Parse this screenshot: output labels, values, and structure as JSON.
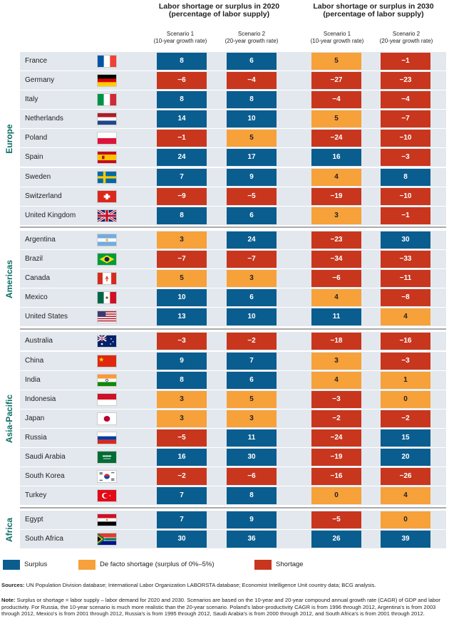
{
  "chart_data": {
    "type": "table",
    "headers": {
      "group_2020": "Labor shortage or surplus in 2020",
      "group_2020_sub": "(percentage of labor supply)",
      "group_2030": "Labor shortage or surplus in 2030",
      "group_2030_sub": "(percentage of labor supply)",
      "s1": "Scenario 1",
      "s1_sub": "(10-year growth rate)",
      "s2": "Scenario 2",
      "s2_sub": "(20-year growth rate)"
    },
    "regions": [
      {
        "name": "Europe",
        "countries": [
          {
            "name": "France",
            "flag": "fr",
            "v": [
              8,
              6,
              5,
              -1
            ]
          },
          {
            "name": "Germany",
            "flag": "de",
            "v": [
              -6,
              -4,
              -27,
              -23
            ]
          },
          {
            "name": "Italy",
            "flag": "it",
            "v": [
              8,
              8,
              -4,
              -4
            ]
          },
          {
            "name": "Netherlands",
            "flag": "nl",
            "v": [
              14,
              10,
              5,
              -7
            ]
          },
          {
            "name": "Poland",
            "flag": "pl",
            "v": [
              -1,
              5,
              -24,
              -10
            ]
          },
          {
            "name": "Spain",
            "flag": "es",
            "v": [
              24,
              17,
              16,
              -3
            ]
          },
          {
            "name": "Sweden",
            "flag": "se",
            "v": [
              7,
              9,
              4,
              8
            ]
          },
          {
            "name": "Switzerland",
            "flag": "ch",
            "v": [
              -9,
              -5,
              -19,
              -10
            ]
          },
          {
            "name": "United Kingdom",
            "flag": "gb",
            "v": [
              8,
              6,
              3,
              -1
            ]
          }
        ]
      },
      {
        "name": "Americas",
        "countries": [
          {
            "name": "Argentina",
            "flag": "ar",
            "v": [
              3,
              24,
              -23,
              30
            ]
          },
          {
            "name": "Brazil",
            "flag": "br",
            "v": [
              -7,
              -7,
              -34,
              -33
            ]
          },
          {
            "name": "Canada",
            "flag": "ca",
            "v": [
              5,
              3,
              -6,
              -11
            ]
          },
          {
            "name": "Mexico",
            "flag": "mx",
            "v": [
              10,
              6,
              4,
              -8
            ]
          },
          {
            "name": "United States",
            "flag": "us",
            "v": [
              13,
              10,
              11,
              4
            ]
          }
        ]
      },
      {
        "name": "Asia-Pacific",
        "countries": [
          {
            "name": "Australia",
            "flag": "au",
            "v": [
              -3,
              -2,
              -18,
              -16
            ]
          },
          {
            "name": "China",
            "flag": "cn",
            "v": [
              9,
              7,
              3,
              -3
            ]
          },
          {
            "name": "India",
            "flag": "in",
            "v": [
              8,
              6,
              4,
              1
            ]
          },
          {
            "name": "Indonesia",
            "flag": "id",
            "v": [
              3,
              5,
              -3,
              0
            ]
          },
          {
            "name": "Japan",
            "flag": "jp",
            "v": [
              3,
              3,
              -2,
              -2
            ]
          },
          {
            "name": "Russia",
            "flag": "ru",
            "v": [
              -5,
              11,
              -24,
              15
            ]
          },
          {
            "name": "Saudi Arabia",
            "flag": "sa",
            "v": [
              16,
              30,
              -19,
              20
            ]
          },
          {
            "name": "South Korea",
            "flag": "kr",
            "v": [
              -2,
              -6,
              -16,
              -26
            ]
          },
          {
            "name": "Turkey",
            "flag": "tr",
            "v": [
              7,
              8,
              0,
              4
            ]
          }
        ]
      },
      {
        "name": "Africa",
        "countries": [
          {
            "name": "Egypt",
            "flag": "eg",
            "v": [
              7,
              9,
              -5,
              0
            ]
          },
          {
            "name": "South Africa",
            "flag": "za",
            "v": [
              30,
              36,
              26,
              39
            ]
          }
        ]
      }
    ],
    "legend": [
      {
        "label": "Surplus",
        "color": "#0a5d8f"
      },
      {
        "label": "De facto shortage (surplus of 0%–5%)",
        "color": "#f6a13a"
      },
      {
        "label": "Shortage",
        "color": "#c8361e"
      }
    ]
  },
  "colors": {
    "surplus": "#0a5d8f",
    "defacto": "#f6a13a",
    "shortage": "#c8361e",
    "region": "#0d6e63",
    "rowbg": "#e3e8ee"
  },
  "footnotes": {
    "sources_label": "Sources:",
    "sources_text": " UN Population Division database; International Labor Organization LABORSTA database; Economist Intelligence Unit country data; BCG analysis.",
    "note_label": "Note:",
    "note_text": " Surplus or shortage = labor supply – labor demand for 2020 and 2030. Scenarios are based on the 10-year and 20-year compound annual growth rate (CAGR) of GDP and labor productivity. For Russia, the 10-year scenario is much more realistic than the 20-year scenario. Poland's labor-productivity CAGR is from 1996 through 2012, Argentina's is from 2003 through 2012, Mexico's is from 2001 through 2012, Russia's is from 1995 through 2012, Saudi Arabia's is from 2000 through 2012, and South Africa's is from 2001 through 2012."
  }
}
